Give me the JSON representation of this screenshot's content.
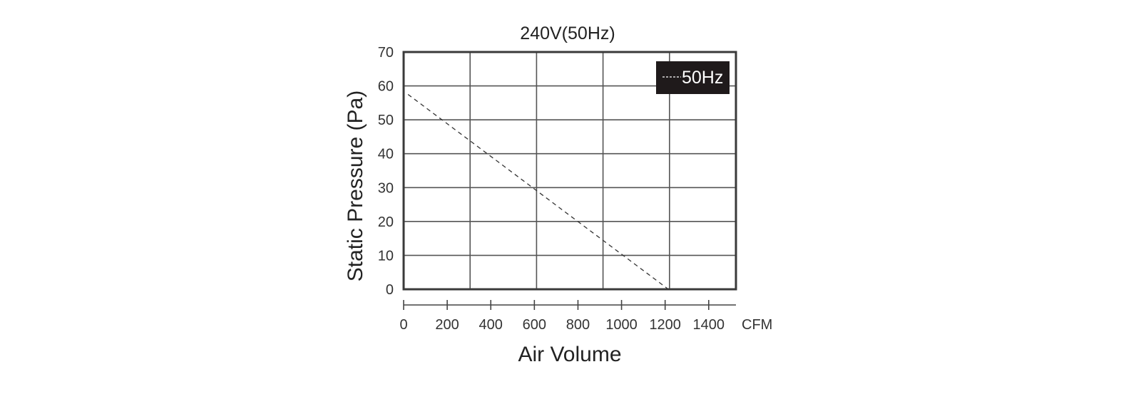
{
  "chart_data": {
    "type": "line",
    "title": "240V(50Hz)",
    "xlabel": "Air Volume",
    "ylabel": "Static Pressure (Pa)",
    "x_unit": "CFM",
    "xlim": [
      0,
      1525
    ],
    "ylim": [
      0,
      70
    ],
    "x_ticks": [
      0,
      200,
      400,
      600,
      800,
      1000,
      1200,
      1400
    ],
    "y_ticks": [
      0,
      10,
      20,
      30,
      40,
      50,
      60,
      70
    ],
    "x_gridlines": [
      305,
      610,
      915,
      1220
    ],
    "grid": true,
    "legend": {
      "placement": "top-right",
      "style": "white text on black box"
    },
    "series": [
      {
        "name": "50Hz",
        "line_style": "dashed",
        "color": "#333333",
        "x": [
          20,
          1215
        ],
        "y": [
          57.5,
          0
        ]
      }
    ]
  }
}
